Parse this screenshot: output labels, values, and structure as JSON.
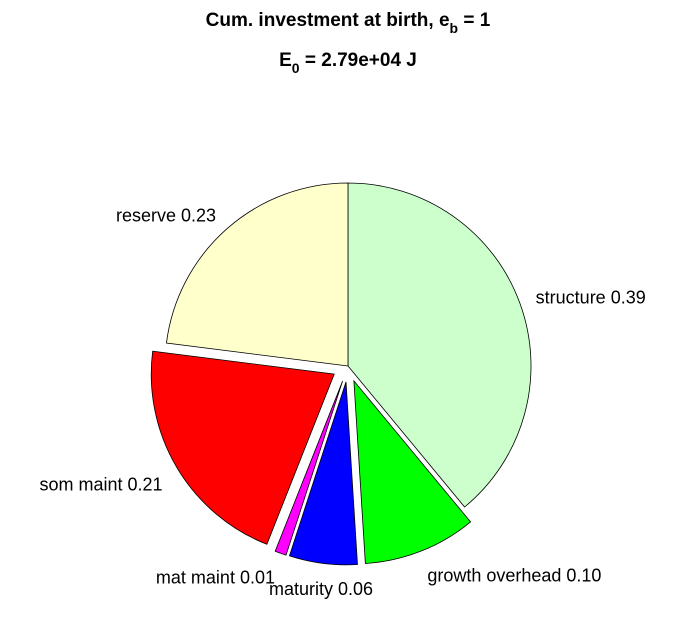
{
  "chart_data": {
    "type": "pie",
    "title": [
      "Cum. investment at birth, e",
      "b",
      " = 1"
    ],
    "subtitle": [
      "E",
      "0",
      " = 2.79e+04 J"
    ],
    "categories": [
      "structure",
      "growth overhead",
      "maturity",
      "mat maint",
      "som maint",
      "reserve"
    ],
    "values": [
      0.39,
      0.1,
      0.06,
      0.01,
      0.21,
      0.23
    ],
    "value_labels": [
      "0.39",
      "0.10",
      "0.06",
      "0.01",
      "0.21",
      "0.23"
    ],
    "colors": [
      "#ccffcc",
      "#00ff00",
      "#0000ff",
      "#ff00ff",
      "#ff0000",
      "#ffffcc"
    ],
    "explode": [
      false,
      true,
      true,
      true,
      true,
      false
    ]
  }
}
